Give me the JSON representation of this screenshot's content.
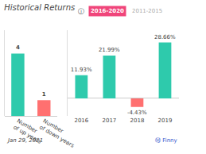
{
  "chart_data": [
    {
      "type": "bar",
      "title": "Historical Returns",
      "categories": [
        "Number\nof up years",
        "Number\nof down years"
      ],
      "values": [
        4,
        1
      ],
      "colors": [
        "#2ecaac",
        "#ff7070"
      ],
      "ylim": [
        0,
        5.5
      ],
      "tick_labels": "x",
      "grid": false,
      "data_labels": true,
      "annotations": [
        {
          "text": "ⓘ"
        },
        {
          "text": "Jan 29, 2021"
        }
      ]
    },
    {
      "type": "bar",
      "categories": [
        "2016",
        "2017",
        "2018",
        "2019"
      ],
      "values": [
        11.93,
        21.99,
        -4.43,
        28.66
      ],
      "value_labels": [
        "11.93%",
        "21.99%",
        "-4.43%",
        "28.66%"
      ],
      "colors": [
        "#2ecaac",
        "#2ecaac",
        "#ff7070",
        "#2ecaac"
      ],
      "ylim": [
        -9,
        35
      ],
      "tick_labels": "x",
      "grid": false,
      "data_labels": true,
      "annotations": [
        {
          "text": "2016-2020",
          "color": "#f0457a"
        },
        {
          "text": "2011-2015",
          "color": "#aaaaaa"
        },
        {
          "text": "Ⓜ Finny",
          "color": "#3355cc"
        }
      ]
    }
  ]
}
